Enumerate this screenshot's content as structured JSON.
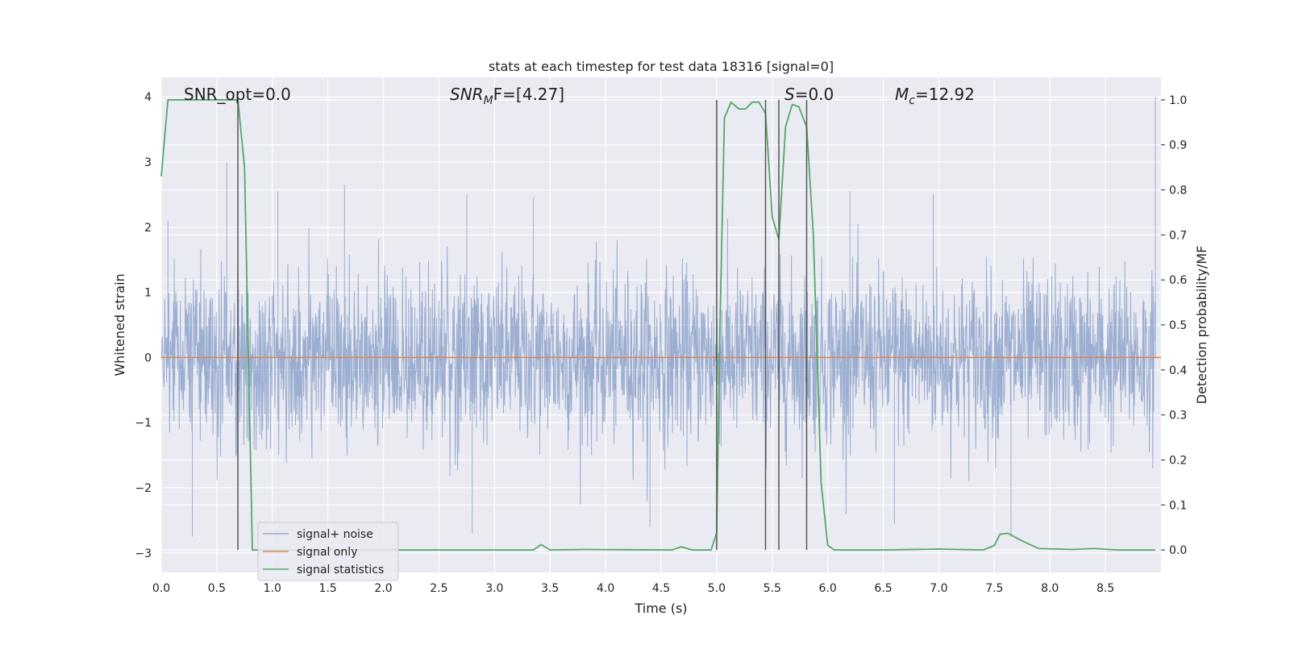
{
  "chart_data": {
    "type": "line",
    "title": "stats at each timestep for test data 18316 [signal=0]",
    "xlabel": "Time (s)",
    "ylabel_left": "Whitened strain",
    "ylabel_right": "Detection probability/MF",
    "xlim": [
      0.0,
      9.0
    ],
    "ylim_left": [
      -3.3,
      4.3
    ],
    "ylim_right": [
      -0.05,
      1.05
    ],
    "x_ticks": [
      "0.0",
      "0.5",
      "1.0",
      "1.5",
      "2.0",
      "2.5",
      "3.0",
      "3.5",
      "4.0",
      "4.5",
      "5.0",
      "5.5",
      "6.0",
      "6.5",
      "7.0",
      "7.5",
      "8.0",
      "8.5"
    ],
    "y_left_ticks": [
      "−3",
      "−2",
      "−1",
      "0",
      "1",
      "2",
      "3",
      "4"
    ],
    "y_right_ticks": [
      "0.0",
      "0.1",
      "0.2",
      "0.3",
      "0.4",
      "0.5",
      "0.6",
      "0.7",
      "0.8",
      "0.9",
      "1.0"
    ],
    "grid": true,
    "legend_position": "lower-left",
    "annotations": [
      {
        "name": "snr-opt",
        "text": "SNR_opt=0.0"
      },
      {
        "name": "snr-mf",
        "prefix": "SNR",
        "sub": "M",
        "suffix": "F=[4.27]"
      },
      {
        "name": "s-value",
        "prefix": "S",
        "suffix": "=0.0"
      },
      {
        "name": "chirp-mass",
        "prefix": "M",
        "sub": "c",
        "suffix": "=12.92"
      }
    ],
    "vertical_lines_x": [
      0.69,
      5.0,
      5.44,
      5.56,
      5.81
    ],
    "series": [
      {
        "name": "signal+ noise",
        "color": "#4c72b0",
        "axis": "left",
        "description_kind": "noise",
        "band_sigma": 0.65,
        "peak_values": [
          {
            "x": 0.06,
            "y": 2.1
          },
          {
            "x": 0.59,
            "y": 3.0
          },
          {
            "x": 1.05,
            "y": 2.55
          },
          {
            "x": 1.65,
            "y": 2.65
          },
          {
            "x": 2.75,
            "y": 2.5
          },
          {
            "x": 3.35,
            "y": 2.45
          },
          {
            "x": 6.2,
            "y": 2.55
          },
          {
            "x": 6.95,
            "y": 2.5
          },
          {
            "x": 8.95,
            "y": 4.0
          },
          {
            "x": 0.28,
            "y": -2.75
          },
          {
            "x": 2.8,
            "y": -2.7
          },
          {
            "x": 4.4,
            "y": -2.6
          },
          {
            "x": 6.6,
            "y": -2.55
          },
          {
            "x": 7.65,
            "y": -2.75
          }
        ]
      },
      {
        "name": "signal only",
        "color": "#dd8452",
        "axis": "left",
        "x": [
          0.0,
          9.0
        ],
        "y": [
          0.0,
          0.0
        ]
      },
      {
        "name": "signal statistics",
        "color": "#55a868",
        "axis": "right",
        "x": [
          0.0,
          0.06,
          0.12,
          0.69,
          0.75,
          0.82,
          3.35,
          3.42,
          3.5,
          3.8,
          4.6,
          4.68,
          4.78,
          4.95,
          5.0,
          5.03,
          5.07,
          5.13,
          5.2,
          5.26,
          5.32,
          5.38,
          5.44,
          5.5,
          5.56,
          5.62,
          5.68,
          5.74,
          5.81,
          5.87,
          5.94,
          6.0,
          6.06,
          6.5,
          7.0,
          7.4,
          7.5,
          7.55,
          7.62,
          7.75,
          7.9,
          8.2,
          8.4,
          8.6,
          8.95
        ],
        "y": [
          0.83,
          1.0,
          1.0,
          1.0,
          0.85,
          0.0,
          0.0,
          0.012,
          0.0,
          0.001,
          0.0,
          0.007,
          0.0,
          0.0,
          0.038,
          0.5,
          0.96,
          0.995,
          0.98,
          0.98,
          0.995,
          0.995,
          0.97,
          0.74,
          0.69,
          0.94,
          0.99,
          0.985,
          0.94,
          0.7,
          0.15,
          0.01,
          0.0,
          0.0,
          0.002,
          0.0,
          0.01,
          0.035,
          0.037,
          0.02,
          0.003,
          0.001,
          0.003,
          0.0,
          0.0
        ]
      }
    ]
  }
}
